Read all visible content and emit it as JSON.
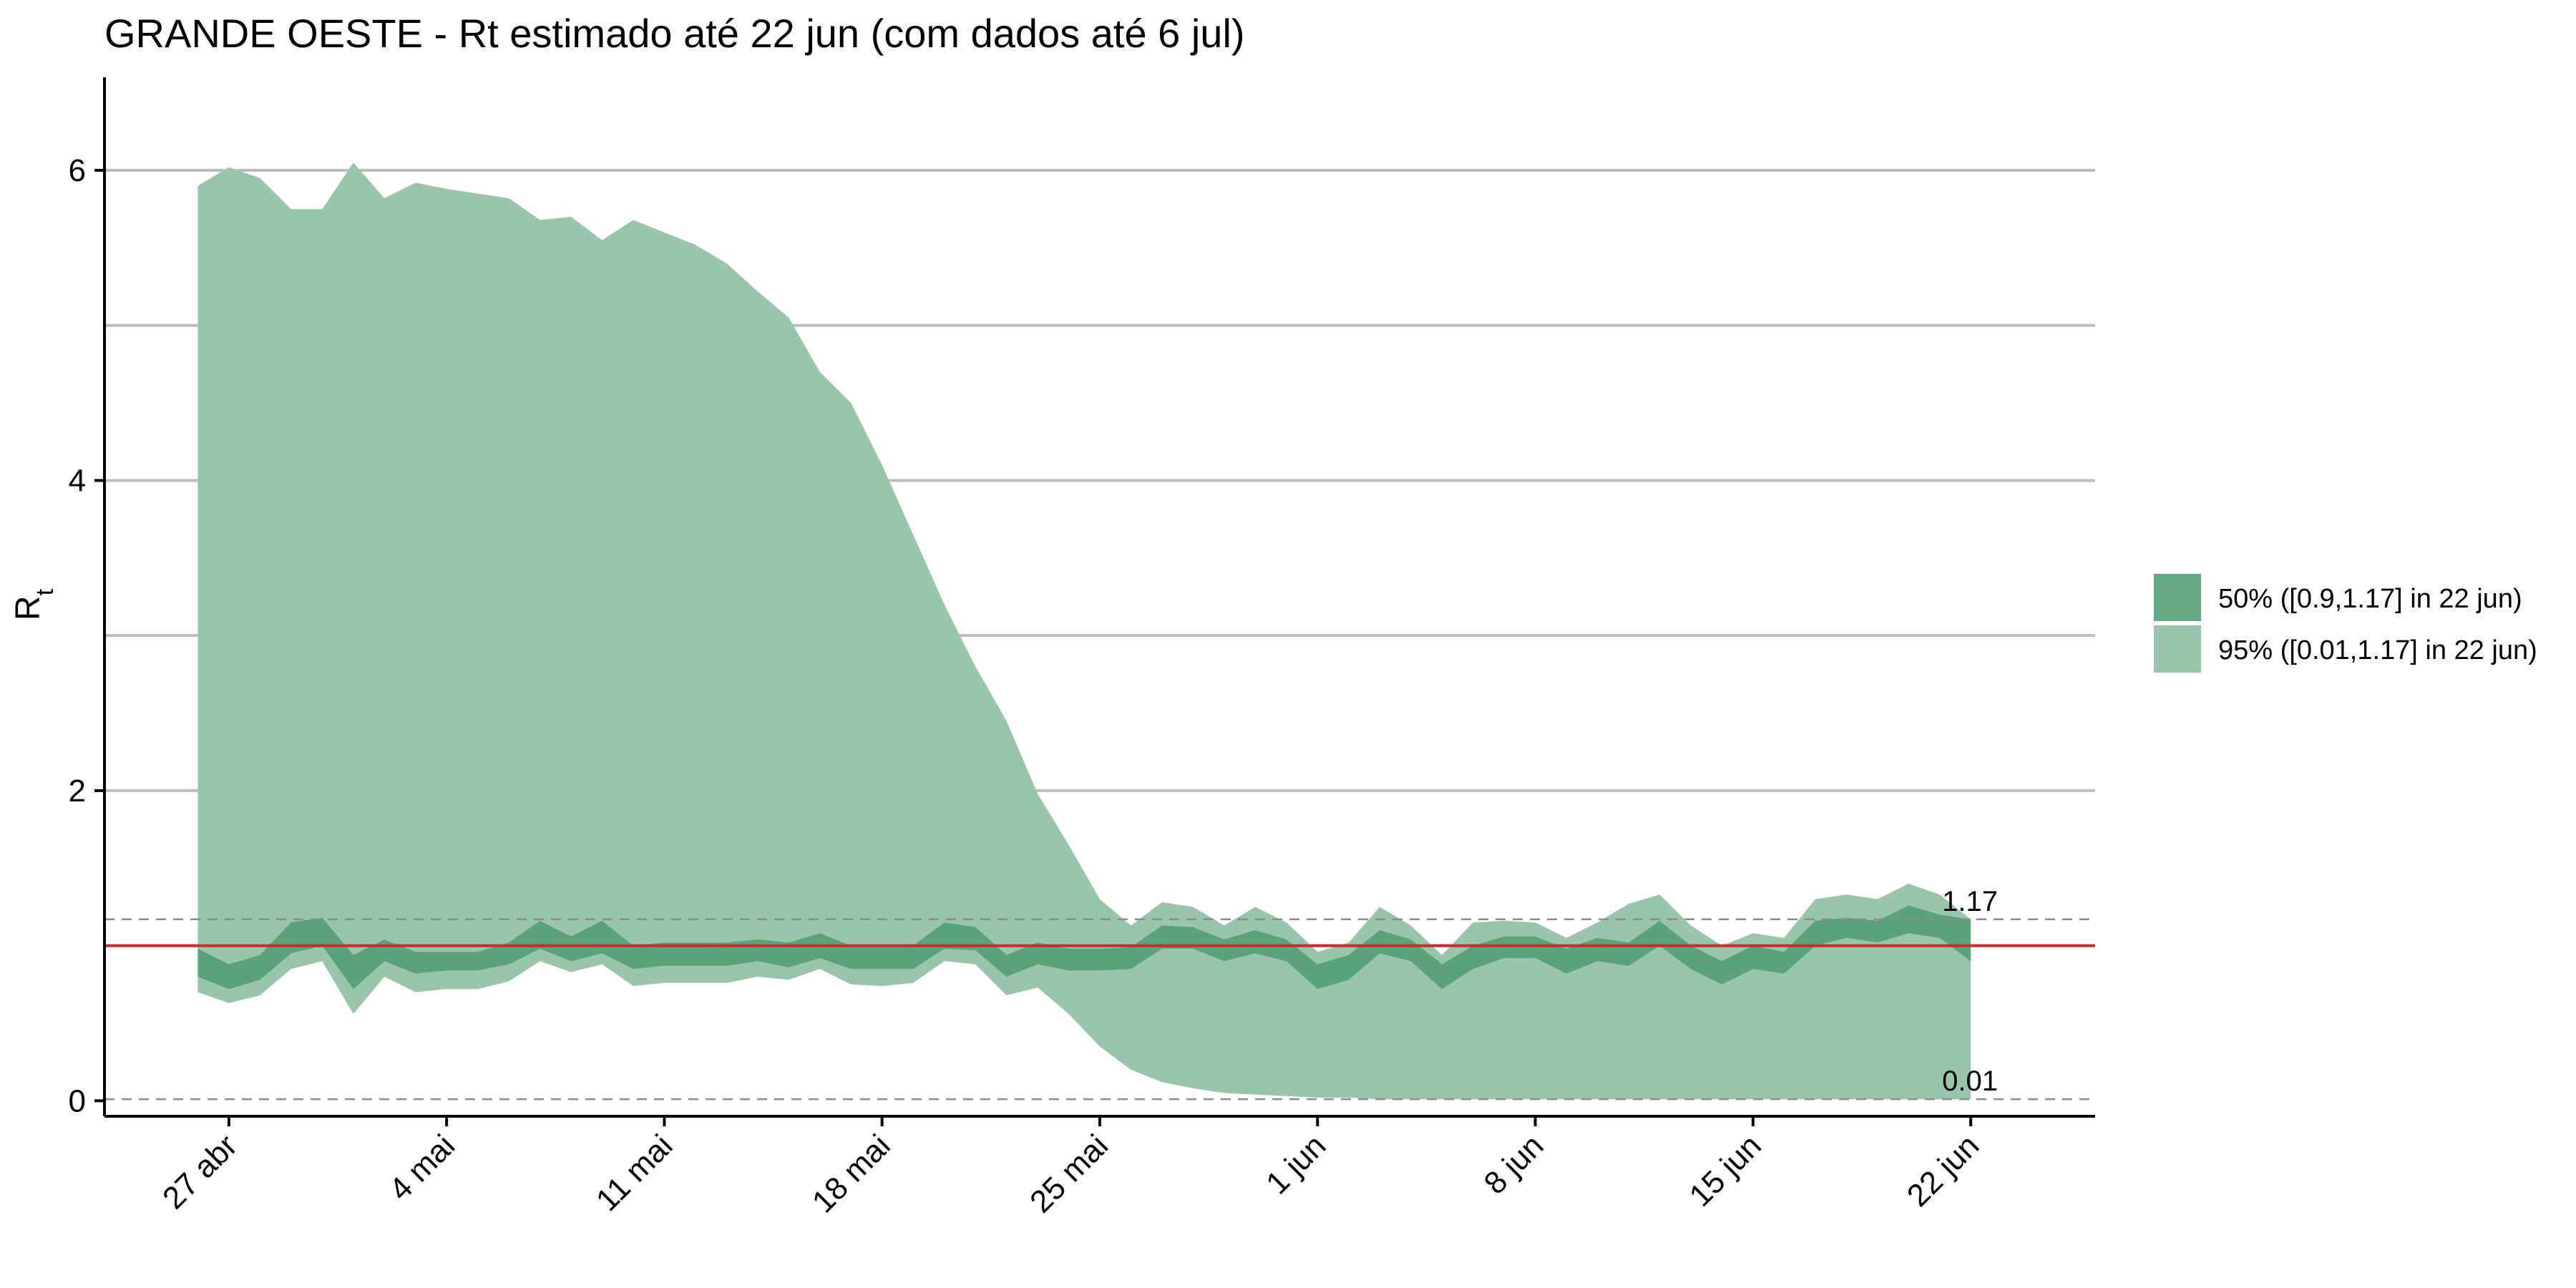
{
  "chart_data": {
    "type": "area",
    "title": "GRANDE OESTE - Rt estimado até 22 jun (com dados até 6 jul)",
    "ylabel_main": "R",
    "ylabel_sub": "t",
    "xlabel": "",
    "ylim": [
      -0.1,
      6.6
    ],
    "yticks": [
      0,
      2,
      4,
      6
    ],
    "gridlines_y": [
      1,
      2,
      3,
      4,
      5,
      6
    ],
    "x_tick_labels": [
      "27 abr",
      "4 mai",
      "11 mai",
      "18 mai",
      "25 mai",
      "1 jun",
      "8 jun",
      "15 jun",
      "22 jun"
    ],
    "x_tick_day_offsets": [
      0,
      7,
      14,
      21,
      28,
      35,
      42,
      49,
      56
    ],
    "x_start_day_offset": -1,
    "x_end_day_offset": 56,
    "xlim_day_offsets": [
      -4,
      60
    ],
    "reference_line": {
      "value": 1,
      "color": "#cc2a2a"
    },
    "dashed_lines": [
      {
        "value": 1.17,
        "label": "1.17"
      },
      {
        "value": 0.01,
        "label": "0.01"
      }
    ],
    "legend": {
      "placement": "right",
      "entries": [
        {
          "label": "50% ([0.9,1.17] in 22 jun)",
          "color": "#66a882"
        },
        {
          "label": "95% ([0.01,1.17] in 22 jun)",
          "color": "#99c5aa"
        }
      ]
    },
    "series": [
      {
        "name": "50% ([0.9,1.17] in 22 jun)",
        "color": "#5aa37a",
        "lower": [
          0.8,
          0.72,
          0.78,
          0.95,
          1.0,
          0.72,
          0.9,
          0.82,
          0.84,
          0.84,
          0.88,
          0.98,
          0.9,
          0.95,
          0.85,
          0.87,
          0.87,
          0.87,
          0.9,
          0.86,
          0.92,
          0.85,
          0.85,
          0.85,
          0.98,
          0.97,
          0.8,
          0.88,
          0.84,
          0.84,
          0.85,
          0.98,
          0.98,
          0.9,
          0.95,
          0.9,
          0.72,
          0.78,
          0.95,
          0.9,
          0.72,
          0.85,
          0.92,
          0.92,
          0.82,
          0.9,
          0.87,
          1.0,
          0.85,
          0.75,
          0.85,
          0.82,
          1.0,
          1.05,
          1.02,
          1.08,
          1.05,
          0.9
        ],
        "upper": [
          0.98,
          0.88,
          0.94,
          1.15,
          1.18,
          0.94,
          1.04,
          0.96,
          0.96,
          0.96,
          1.02,
          1.16,
          1.06,
          1.16,
          1.0,
          1.02,
          1.02,
          1.02,
          1.04,
          1.02,
          1.08,
          1.0,
          1.0,
          1.0,
          1.15,
          1.12,
          0.94,
          1.02,
          0.98,
          0.98,
          0.99,
          1.13,
          1.12,
          1.04,
          1.1,
          1.04,
          0.88,
          0.94,
          1.1,
          1.04,
          0.88,
          1.0,
          1.06,
          1.06,
          0.98,
          1.05,
          1.02,
          1.16,
          1.0,
          0.9,
          1.0,
          0.96,
          1.16,
          1.18,
          1.16,
          1.26,
          1.2,
          1.17
        ]
      },
      {
        "name": "95% ([0.01,1.17] in 22 jun)",
        "color": "#99c5aa",
        "lower": [
          0.7,
          0.63,
          0.68,
          0.85,
          0.9,
          0.56,
          0.8,
          0.7,
          0.72,
          0.72,
          0.77,
          0.9,
          0.83,
          0.88,
          0.74,
          0.76,
          0.76,
          0.76,
          0.8,
          0.78,
          0.85,
          0.75,
          0.74,
          0.76,
          0.9,
          0.88,
          0.68,
          0.73,
          0.56,
          0.35,
          0.2,
          0.12,
          0.08,
          0.05,
          0.04,
          0.03,
          0.02,
          0.02,
          0.01,
          0.01,
          0.01,
          0.01,
          0.01,
          0.01,
          0.01,
          0.01,
          0.01,
          0.01,
          0.01,
          0.01,
          0.01,
          0.01,
          0.01,
          0.01,
          0.01,
          0.01,
          0.01,
          0.01
        ],
        "upper": [
          5.9,
          6.02,
          5.95,
          5.75,
          5.75,
          6.05,
          5.82,
          5.92,
          5.88,
          5.85,
          5.82,
          5.68,
          5.7,
          5.55,
          5.68,
          5.6,
          5.52,
          5.4,
          5.22,
          5.05,
          4.7,
          4.5,
          4.1,
          3.65,
          3.2,
          2.8,
          2.45,
          1.98,
          1.65,
          1.3,
          1.13,
          1.28,
          1.25,
          1.13,
          1.25,
          1.15,
          0.96,
          1.02,
          1.25,
          1.13,
          0.94,
          1.15,
          1.16,
          1.15,
          1.05,
          1.15,
          1.27,
          1.33,
          1.13,
          1.0,
          1.08,
          1.05,
          1.3,
          1.33,
          1.3,
          1.4,
          1.33,
          1.17
        ]
      }
    ]
  }
}
